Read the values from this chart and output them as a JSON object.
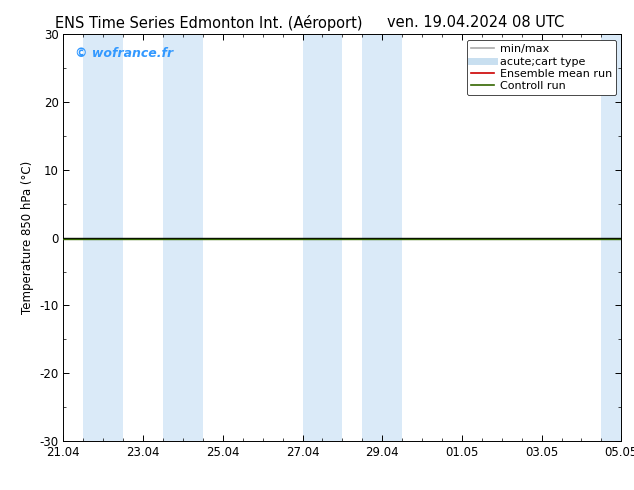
{
  "title_left": "ENS Time Series Edmonton Int. (Aéroport)",
  "title_right": "ven. 19.04.2024 08 UTC",
  "ylabel": "Temperature 850 hPa (°C)",
  "watermark": "© wofrance.fr",
  "watermark_color": "#3399ff",
  "ylim": [
    -30,
    30
  ],
  "yticks": [
    -30,
    -20,
    -10,
    0,
    10,
    20,
    30
  ],
  "xtick_labels": [
    "21.04",
    "23.04",
    "25.04",
    "27.04",
    "29.04",
    "01.05",
    "03.05",
    "05.05"
  ],
  "xtick_positions": [
    0,
    2,
    4,
    6,
    8,
    10,
    12,
    14
  ],
  "x_min": 0,
  "x_max": 14,
  "background_color": "#ffffff",
  "plot_bg_color": "#ffffff",
  "shaded_bands": [
    {
      "x_start": 0.5,
      "x_end": 1.5,
      "color": "#daeaf8"
    },
    {
      "x_start": 2.5,
      "x_end": 3.5,
      "color": "#daeaf8"
    },
    {
      "x_start": 6.0,
      "x_end": 7.0,
      "color": "#daeaf8"
    },
    {
      "x_start": 7.5,
      "x_end": 8.5,
      "color": "#daeaf8"
    },
    {
      "x_start": 13.5,
      "x_end": 14.0,
      "color": "#daeaf8"
    }
  ],
  "zero_line_color": "#000000",
  "zero_line_lw": 1.0,
  "control_run_color": "#336600",
  "control_run_lw": 1.0,
  "ensemble_mean_color": "#cc0000",
  "ensemble_mean_lw": 0.8,
  "spine_color": "#000000",
  "tick_color": "#000000",
  "font_size": 8.5,
  "title_font_size": 10.5,
  "legend_font_size": 8,
  "legend_minmax_color": "#aaaaaa",
  "legend_band_color": "#c8dff0"
}
